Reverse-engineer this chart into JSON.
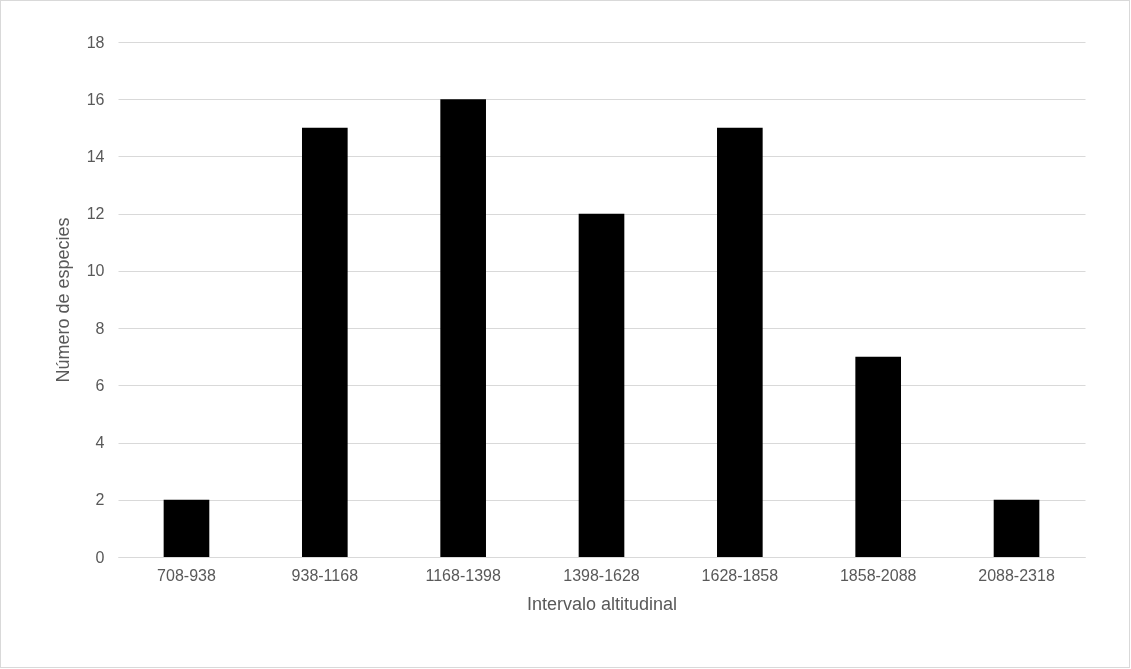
{
  "chart_data": {
    "type": "bar",
    "xlabel": "Intervalo altitudinal",
    "ylabel": "Número de especies",
    "categories": [
      "708-938",
      "938-1168",
      "1168-1398",
      "1398-1628",
      "1628-1858",
      "1858-2088",
      "2088-2318"
    ],
    "values": [
      2,
      15,
      16,
      12,
      15,
      7,
      2
    ],
    "color": "#000000",
    "ylim": [
      0,
      18
    ],
    "yticks": [
      0,
      2,
      4,
      6,
      8,
      10,
      12,
      14,
      16,
      18
    ],
    "grid": "y"
  }
}
